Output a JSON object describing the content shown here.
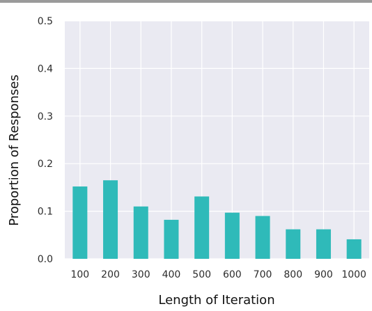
{
  "chart_data": {
    "type": "bar",
    "categories": [
      "100",
      "200",
      "300",
      "400",
      "500",
      "600",
      "700",
      "800",
      "900",
      "1000"
    ],
    "values": [
      0.152,
      0.165,
      0.11,
      0.082,
      0.131,
      0.097,
      0.09,
      0.062,
      0.062,
      0.041
    ],
    "xlabel": "Length of Iteration",
    "ylabel": "Proportion of Responses",
    "ylim": [
      0,
      0.5
    ],
    "yticks": [
      "0.0",
      "0.1",
      "0.2",
      "0.3",
      "0.4",
      "0.5"
    ],
    "grid": true,
    "legend": "none",
    "colors": {
      "bar": "#2fbab9",
      "plot_bg": "#eaeaf2",
      "grid": "#ffffff"
    }
  }
}
